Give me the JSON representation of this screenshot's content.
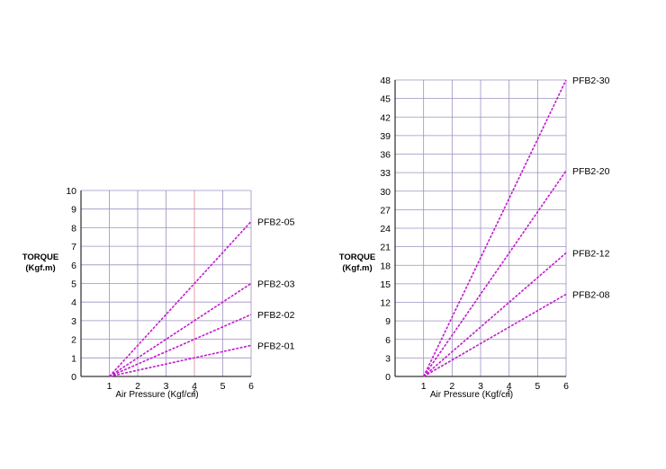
{
  "colors": {
    "grid": "#9f8fc0",
    "grid_accent": "#e08a8a",
    "series": "#c21ccf",
    "axis": "#000000"
  },
  "chart_data": [
    {
      "type": "line",
      "title": "",
      "xlabel": "Air Pressure (Kgf/㎠)",
      "ylabel_lines": [
        "TORQUE",
        "(Kgf.m)"
      ],
      "xlim": [
        0,
        6
      ],
      "ylim": [
        0,
        10
      ],
      "xticks": [
        "0",
        "1",
        "2",
        "3",
        "4",
        "5",
        "6"
      ],
      "yticks": [
        "0",
        "1",
        "2",
        "3",
        "4",
        "5",
        "6",
        "7",
        "8",
        "9",
        "10"
      ],
      "grid": true,
      "series": [
        {
          "name": "PFB2-05",
          "x": [
            1,
            6
          ],
          "y": [
            0,
            8.33
          ]
        },
        {
          "name": "PFB2-03",
          "x": [
            1,
            6
          ],
          "y": [
            0,
            5
          ]
        },
        {
          "name": "PFB2-02",
          "x": [
            1,
            6
          ],
          "y": [
            0,
            3.33
          ]
        },
        {
          "name": "PFB2-01",
          "x": [
            1,
            6
          ],
          "y": [
            0,
            1.67
          ]
        }
      ]
    },
    {
      "type": "line",
      "title": "",
      "xlabel": "Air Pressure (Kgf/㎠)",
      "ylabel_lines": [
        "TORQUE",
        "(Kgf.m)"
      ],
      "xlim": [
        0,
        6
      ],
      "ylim": [
        0,
        48
      ],
      "xticks": [
        "0",
        "1",
        "2",
        "3",
        "4",
        "5",
        "6"
      ],
      "yticks": [
        "0",
        "3",
        "6",
        "9",
        "12",
        "15",
        "18",
        "21",
        "24",
        "27",
        "30",
        "33",
        "36",
        "39",
        "42",
        "45",
        "48"
      ],
      "grid": true,
      "series": [
        {
          "name": "PFB2-30",
          "x": [
            1,
            6
          ],
          "y": [
            0,
            48
          ]
        },
        {
          "name": "PFB2-20",
          "x": [
            1,
            6
          ],
          "y": [
            0,
            33.3
          ]
        },
        {
          "name": "PFB2-12",
          "x": [
            1,
            6
          ],
          "y": [
            0,
            20
          ]
        },
        {
          "name": "PFB2-08",
          "x": [
            1,
            6
          ],
          "y": [
            0,
            13.3
          ]
        }
      ]
    }
  ]
}
